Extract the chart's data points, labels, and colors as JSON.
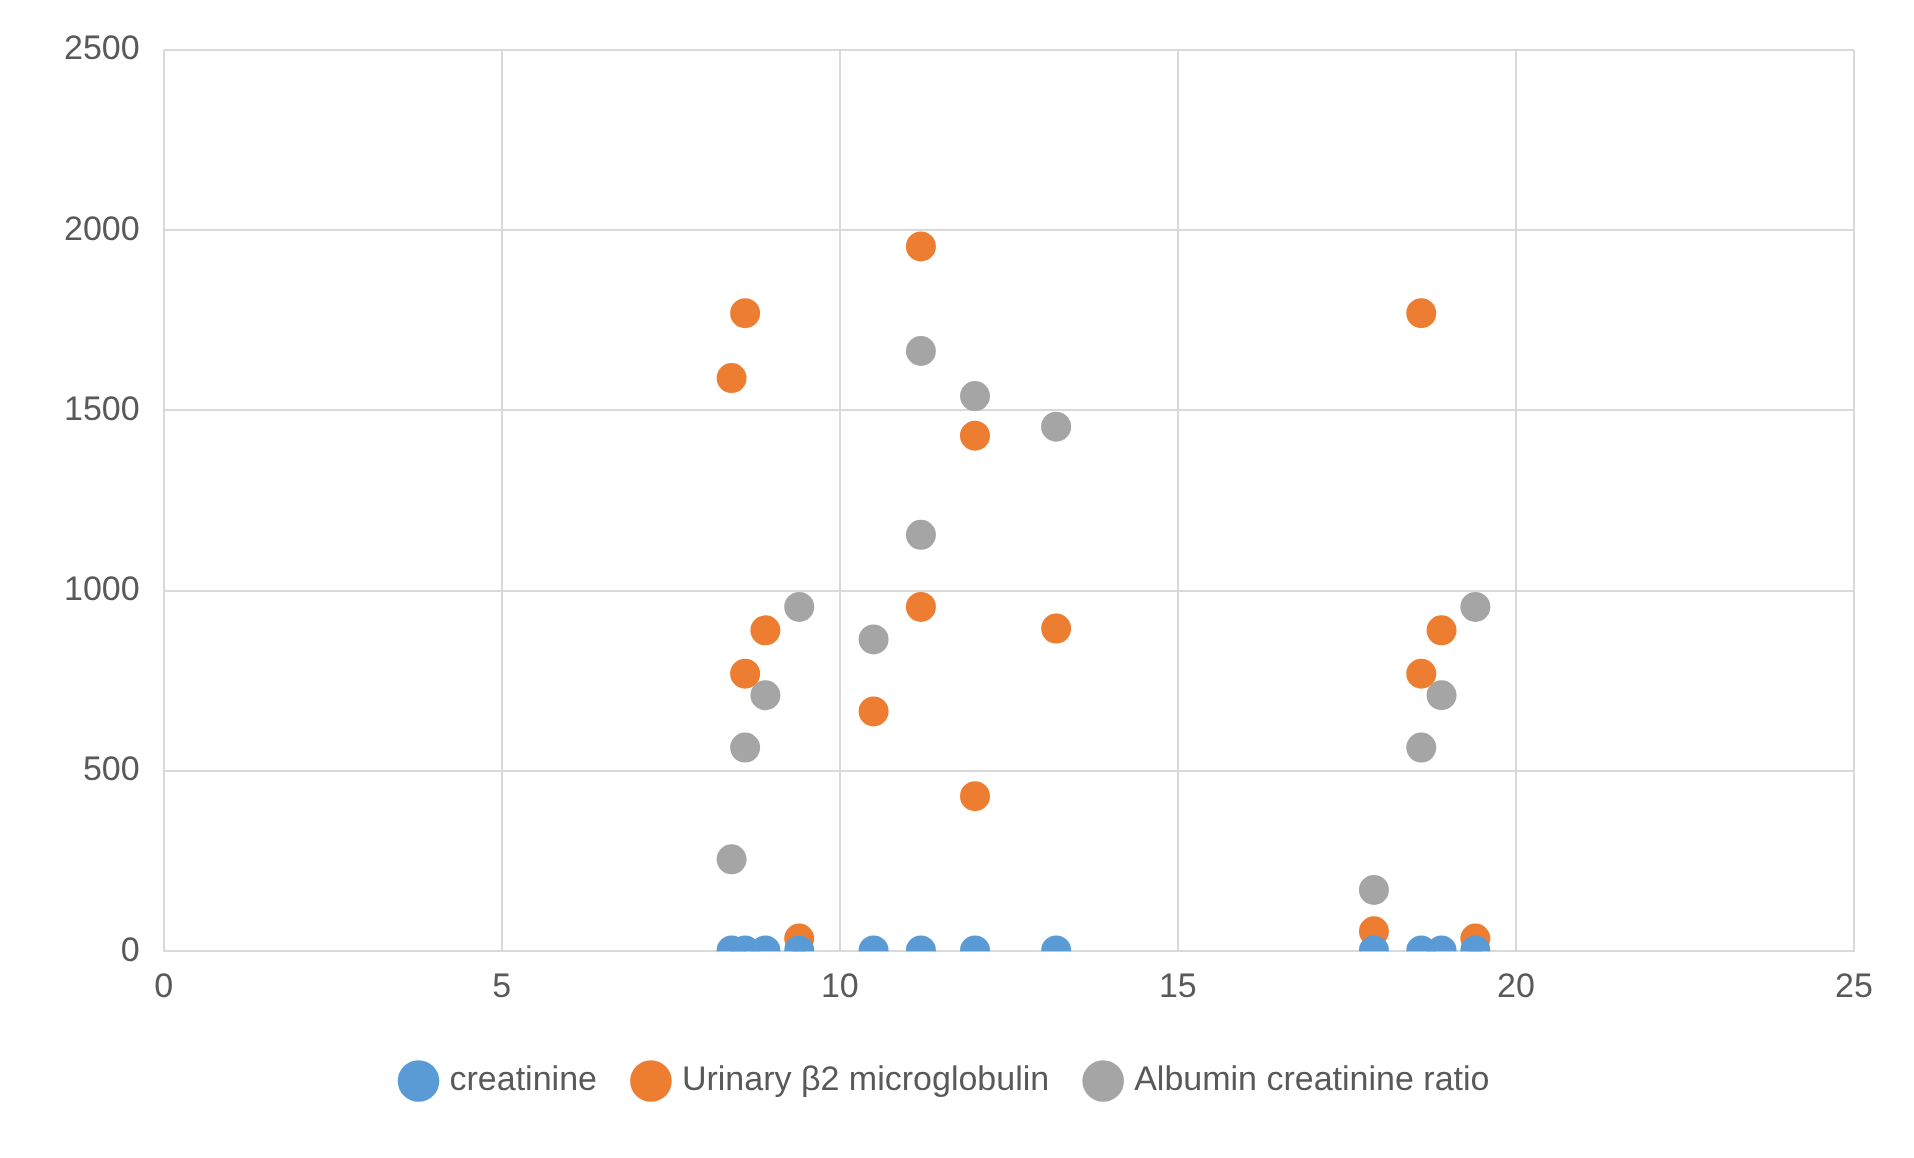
{
  "chart_data": {
    "type": "scatter",
    "xlim": [
      0,
      25
    ],
    "xticks": [
      0,
      5,
      10,
      15,
      20,
      25
    ],
    "ylim": [
      0,
      2500
    ],
    "yticks": [
      0,
      500,
      1000,
      1500,
      2000,
      2500
    ],
    "grid": true,
    "legend": "bottom",
    "marker": "circle",
    "series": [
      {
        "name": "creatinine",
        "color": "#5b9bd5",
        "x": [
          8.4,
          8.6,
          8.9,
          9.4,
          10.5,
          11.2,
          12.0,
          13.2,
          17.9,
          18.6,
          18.9,
          19.4
        ],
        "values": [
          2,
          2,
          2,
          2,
          2,
          2,
          2,
          2,
          2,
          2,
          2,
          2
        ]
      },
      {
        "name": "Urinary β2 microglobulin",
        "color": "#ed7d31",
        "x": [
          8.4,
          8.6,
          8.6,
          8.9,
          9.4,
          10.5,
          11.2,
          11.2,
          12.0,
          12.0,
          13.2,
          17.9,
          18.6,
          18.6,
          18.9,
          19.4
        ],
        "values": [
          1590,
          1770,
          770,
          890,
          35,
          665,
          1955,
          955,
          1430,
          430,
          895,
          55,
          1770,
          770,
          890,
          35
        ]
      },
      {
        "name": "Albumin creatinine ratio",
        "color": "#a5a5a5",
        "x": [
          8.4,
          8.6,
          8.9,
          9.4,
          10.5,
          11.2,
          11.2,
          12.0,
          13.2,
          17.9,
          18.6,
          18.9,
          19.4
        ],
        "values": [
          255,
          565,
          710,
          955,
          865,
          1665,
          1155,
          1540,
          1455,
          170,
          565,
          710,
          955
        ]
      }
    ]
  }
}
